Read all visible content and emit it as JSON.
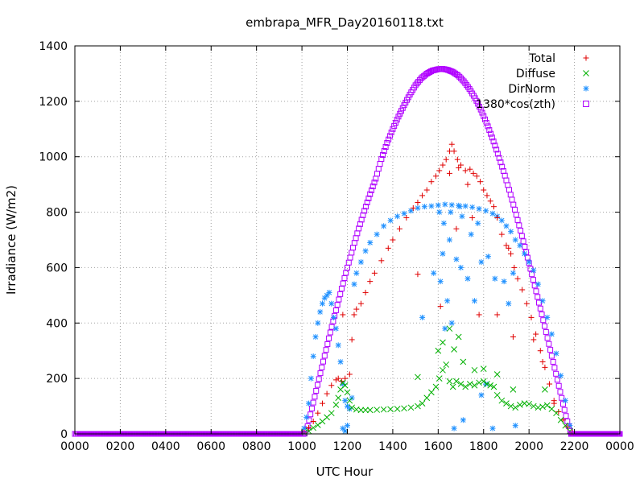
{
  "chart_data": {
    "type": "scatter",
    "title": "embrapa_MFR_Day20160118.txt",
    "xlabel": "UTC Hour",
    "ylabel": "Irradiance (W/m2)",
    "xlim": [
      0,
      24
    ],
    "ylim": [
      0,
      1400
    ],
    "x_ticks": [
      0,
      2,
      4,
      6,
      8,
      10,
      12,
      14,
      16,
      18,
      20,
      22,
      24
    ],
    "x_tick_labels": [
      "0000",
      "0200",
      "0400",
      "0600",
      "0800",
      "1000",
      "1200",
      "1400",
      "1600",
      "1800",
      "2000",
      "2200",
      "0000"
    ],
    "y_ticks": [
      0,
      200,
      400,
      600,
      800,
      1000,
      1200,
      1400
    ],
    "y_tick_labels": [
      "0",
      "200",
      "400",
      "600",
      "800",
      "1000",
      "1200",
      "1400"
    ],
    "grid": true,
    "legend_position": "top-right",
    "series": [
      {
        "name": "Total",
        "marker": "+",
        "color": "#e00000",
        "points": [
          [
            10.1,
            5
          ],
          [
            10.3,
            22
          ],
          [
            10.5,
            45
          ],
          [
            10.7,
            75
          ],
          [
            10.9,
            110
          ],
          [
            11.1,
            145
          ],
          [
            11.3,
            175
          ],
          [
            11.5,
            195
          ],
          [
            11.6,
            200
          ],
          [
            11.75,
            190
          ],
          [
            11.9,
            200
          ],
          [
            12.1,
            215
          ],
          [
            12.2,
            340
          ],
          [
            12.3,
            430
          ],
          [
            12.4,
            450
          ],
          [
            12.6,
            470
          ],
          [
            12.8,
            510
          ],
          [
            13.0,
            550
          ],
          [
            13.2,
            580
          ],
          [
            13.5,
            625
          ],
          [
            13.8,
            670
          ],
          [
            14.0,
            700
          ],
          [
            14.3,
            740
          ],
          [
            14.6,
            780
          ],
          [
            14.9,
            815
          ],
          [
            15.1,
            835
          ],
          [
            15.3,
            860
          ],
          [
            15.5,
            880
          ],
          [
            15.7,
            910
          ],
          [
            15.9,
            930
          ],
          [
            16.05,
            950
          ],
          [
            16.2,
            970
          ],
          [
            16.35,
            990
          ],
          [
            16.5,
            1020
          ],
          [
            16.6,
            1045
          ],
          [
            16.7,
            1020
          ],
          [
            16.85,
            990
          ],
          [
            17.0,
            970
          ],
          [
            17.2,
            950
          ],
          [
            17.4,
            955
          ],
          [
            17.55,
            940
          ],
          [
            17.7,
            930
          ],
          [
            17.85,
            910
          ],
          [
            18.0,
            880
          ],
          [
            18.15,
            860
          ],
          [
            18.3,
            840
          ],
          [
            18.45,
            820
          ],
          [
            18.6,
            780
          ],
          [
            18.8,
            720
          ],
          [
            19.0,
            680
          ],
          [
            19.1,
            670
          ],
          [
            19.2,
            650
          ],
          [
            19.35,
            600
          ],
          [
            19.5,
            560
          ],
          [
            19.7,
            520
          ],
          [
            19.9,
            470
          ],
          [
            20.1,
            420
          ],
          [
            20.3,
            360
          ],
          [
            20.5,
            300
          ],
          [
            20.7,
            240
          ],
          [
            20.9,
            180
          ],
          [
            21.1,
            120
          ],
          [
            21.3,
            80
          ],
          [
            21.5,
            50
          ],
          [
            21.7,
            25
          ],
          [
            21.9,
            5
          ],
          [
            15.1,
            576
          ],
          [
            16.1,
            460
          ],
          [
            16.5,
            940
          ],
          [
            16.9,
            960
          ],
          [
            17.3,
            900
          ],
          [
            17.8,
            430
          ],
          [
            18.6,
            430
          ],
          [
            19.3,
            350
          ],
          [
            20.2,
            340
          ],
          [
            20.6,
            260
          ],
          [
            21.1,
            110
          ],
          [
            11.8,
            430
          ],
          [
            17.5,
            780
          ],
          [
            16.8,
            740
          ]
        ]
      },
      {
        "name": "Diffuse",
        "marker": "x",
        "color": "#00b000",
        "points": [
          [
            10.1,
            4
          ],
          [
            10.3,
            10
          ],
          [
            10.5,
            22
          ],
          [
            10.7,
            32
          ],
          [
            10.9,
            45
          ],
          [
            11.1,
            60
          ],
          [
            11.3,
            75
          ],
          [
            11.5,
            105
          ],
          [
            11.6,
            130
          ],
          [
            11.7,
            160
          ],
          [
            11.8,
            185
          ],
          [
            11.9,
            175
          ],
          [
            12.0,
            150
          ],
          [
            12.1,
            120
          ],
          [
            12.2,
            95
          ],
          [
            12.4,
            88
          ],
          [
            12.6,
            86
          ],
          [
            12.8,
            86
          ],
          [
            13.0,
            86
          ],
          [
            13.3,
            87
          ],
          [
            13.6,
            88
          ],
          [
            13.9,
            89
          ],
          [
            14.2,
            90
          ],
          [
            14.5,
            92
          ],
          [
            14.8,
            95
          ],
          [
            15.1,
            100
          ],
          [
            15.3,
            110
          ],
          [
            15.5,
            130
          ],
          [
            15.7,
            150
          ],
          [
            15.9,
            170
          ],
          [
            16.05,
            200
          ],
          [
            16.2,
            230
          ],
          [
            16.35,
            250
          ],
          [
            16.5,
            190
          ],
          [
            16.65,
            170
          ],
          [
            16.8,
            190
          ],
          [
            17.0,
            180
          ],
          [
            17.2,
            170
          ],
          [
            17.4,
            180
          ],
          [
            17.6,
            175
          ],
          [
            17.8,
            185
          ],
          [
            18.0,
            190
          ],
          [
            18.15,
            180
          ],
          [
            18.3,
            175
          ],
          [
            18.45,
            170
          ],
          [
            18.6,
            140
          ],
          [
            18.8,
            120
          ],
          [
            19.0,
            110
          ],
          [
            19.2,
            100
          ],
          [
            19.4,
            95
          ],
          [
            19.6,
            105
          ],
          [
            19.8,
            110
          ],
          [
            20.0,
            108
          ],
          [
            20.2,
            100
          ],
          [
            20.4,
            95
          ],
          [
            20.6,
            98
          ],
          [
            20.8,
            103
          ],
          [
            21.0,
            90
          ],
          [
            21.2,
            75
          ],
          [
            21.4,
            50
          ],
          [
            21.6,
            30
          ],
          [
            21.8,
            10
          ],
          [
            15.1,
            205
          ],
          [
            16.2,
            330
          ],
          [
            16.5,
            380
          ],
          [
            16.7,
            305
          ],
          [
            17.1,
            260
          ],
          [
            17.6,
            230
          ],
          [
            18.0,
            235
          ],
          [
            18.6,
            215
          ],
          [
            19.3,
            160
          ],
          [
            16.0,
            300
          ],
          [
            16.9,
            350
          ],
          [
            20.7,
            160
          ]
        ]
      },
      {
        "name": "DirNorm",
        "marker": "*",
        "color": "#1e90ff",
        "points": [
          [
            10.1,
            20
          ],
          [
            10.2,
            60
          ],
          [
            10.3,
            110
          ],
          [
            10.4,
            200
          ],
          [
            10.5,
            280
          ],
          [
            10.6,
            350
          ],
          [
            10.7,
            400
          ],
          [
            10.8,
            440
          ],
          [
            10.9,
            470
          ],
          [
            11.0,
            490
          ],
          [
            11.1,
            500
          ],
          [
            11.2,
            510
          ],
          [
            11.3,
            470
          ],
          [
            11.4,
            420
          ],
          [
            11.5,
            380
          ],
          [
            11.6,
            320
          ],
          [
            11.7,
            260
          ],
          [
            11.8,
            180
          ],
          [
            11.9,
            120
          ],
          [
            12.0,
            100
          ],
          [
            12.1,
            90
          ],
          [
            12.2,
            130
          ],
          [
            12.3,
            540
          ],
          [
            12.4,
            580
          ],
          [
            12.6,
            620
          ],
          [
            12.8,
            660
          ],
          [
            13.0,
            690
          ],
          [
            13.3,
            720
          ],
          [
            13.6,
            750
          ],
          [
            13.9,
            770
          ],
          [
            14.2,
            785
          ],
          [
            14.5,
            795
          ],
          [
            14.8,
            805
          ],
          [
            15.1,
            815
          ],
          [
            15.4,
            820
          ],
          [
            15.7,
            822
          ],
          [
            16.0,
            825
          ],
          [
            16.3,
            828
          ],
          [
            16.6,
            826
          ],
          [
            16.9,
            824
          ],
          [
            17.2,
            822
          ],
          [
            17.5,
            818
          ],
          [
            17.8,
            812
          ],
          [
            18.1,
            805
          ],
          [
            18.4,
            795
          ],
          [
            18.6,
            785
          ],
          [
            18.8,
            770
          ],
          [
            19.0,
            750
          ],
          [
            19.2,
            730
          ],
          [
            19.4,
            700
          ],
          [
            19.6,
            680
          ],
          [
            19.8,
            650
          ],
          [
            20.0,
            620
          ],
          [
            20.2,
            590
          ],
          [
            20.4,
            540
          ],
          [
            20.6,
            480
          ],
          [
            20.8,
            420
          ],
          [
            21.0,
            360
          ],
          [
            21.2,
            290
          ],
          [
            21.4,
            210
          ],
          [
            21.6,
            120
          ],
          [
            21.8,
            30
          ],
          [
            11.8,
            20
          ],
          [
            11.9,
            10
          ],
          [
            12.0,
            30
          ],
          [
            16.2,
            650
          ],
          [
            16.5,
            700
          ],
          [
            16.8,
            630
          ],
          [
            16.1,
            550
          ],
          [
            16.4,
            480
          ],
          [
            16.6,
            400
          ],
          [
            16.3,
            380
          ],
          [
            15.3,
            420
          ],
          [
            15.8,
            580
          ],
          [
            17.0,
            600
          ],
          [
            17.3,
            560
          ],
          [
            17.6,
            480
          ],
          [
            17.9,
            620
          ],
          [
            18.2,
            640
          ],
          [
            18.5,
            560
          ],
          [
            18.1,
            180
          ],
          [
            17.1,
            50
          ],
          [
            16.7,
            20
          ],
          [
            18.9,
            550
          ],
          [
            19.1,
            470
          ],
          [
            19.3,
            580
          ],
          [
            16.95,
            820
          ],
          [
            16.05,
            800
          ],
          [
            16.55,
            800
          ],
          [
            17.75,
            760
          ],
          [
            16.25,
            760
          ],
          [
            17.05,
            785
          ],
          [
            17.45,
            720
          ],
          [
            17.9,
            140
          ],
          [
            18.4,
            20
          ],
          [
            19.4,
            30
          ]
        ]
      },
      {
        "name": "1380*cos(zth)",
        "marker": "square",
        "color": "#b000ff",
        "points": [
          [
            0.0,
            0
          ],
          [
            1.0,
            0
          ],
          [
            2.0,
            0
          ],
          [
            3.0,
            0
          ],
          [
            4.0,
            0
          ],
          [
            5.0,
            0
          ],
          [
            6.0,
            0
          ],
          [
            7.0,
            0
          ],
          [
            8.0,
            0
          ],
          [
            9.0,
            0
          ],
          [
            10.0,
            0
          ],
          [
            10.12,
            0
          ],
          [
            10.25,
            28
          ],
          [
            10.5,
            113
          ],
          [
            10.75,
            198
          ],
          [
            11.0,
            282
          ],
          [
            11.25,
            366
          ],
          [
            11.5,
            446
          ],
          [
            11.75,
            524
          ],
          [
            12.0,
            600
          ],
          [
            12.25,
            672
          ],
          [
            12.5,
            741
          ],
          [
            12.75,
            805
          ],
          [
            13.0,
            865
          ],
          [
            13.25,
            921
          ],
          [
            13.5,
            992
          ],
          [
            13.75,
            1050
          ],
          [
            14.0,
            1100
          ],
          [
            14.25,
            1145
          ],
          [
            14.5,
            1186
          ],
          [
            14.75,
            1224
          ],
          [
            15.0,
            1258
          ],
          [
            15.25,
            1283
          ],
          [
            15.5,
            1300
          ],
          [
            15.75,
            1311
          ],
          [
            16.0,
            1316
          ],
          [
            16.2,
            1317
          ],
          [
            16.4,
            1314
          ],
          [
            16.65,
            1306
          ],
          [
            16.9,
            1292
          ],
          [
            17.15,
            1270
          ],
          [
            17.4,
            1242
          ],
          [
            17.65,
            1208
          ],
          [
            17.9,
            1166
          ],
          [
            18.15,
            1118
          ],
          [
            18.4,
            1064
          ],
          [
            18.65,
            1005
          ],
          [
            18.9,
            942
          ],
          [
            19.15,
            874
          ],
          [
            19.4,
            802
          ],
          [
            19.65,
            726
          ],
          [
            19.9,
            648
          ],
          [
            20.15,
            568
          ],
          [
            20.4,
            486
          ],
          [
            20.65,
            402
          ],
          [
            20.9,
            316
          ],
          [
            21.15,
            230
          ],
          [
            21.4,
            143
          ],
          [
            21.65,
            56
          ],
          [
            21.85,
            0
          ],
          [
            22.0,
            0
          ],
          [
            23.0,
            0
          ],
          [
            24.0,
            0
          ]
        ]
      }
    ]
  }
}
